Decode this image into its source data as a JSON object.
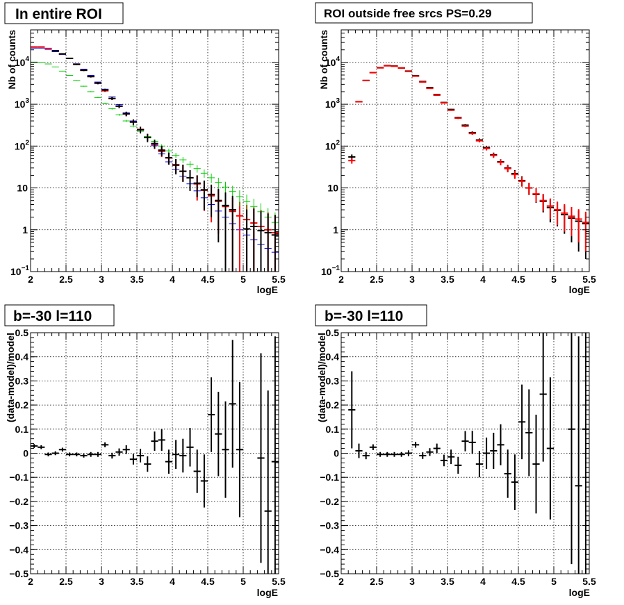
{
  "chart_data": [
    {
      "type": "scatter",
      "panel": "top-left",
      "title": "In entire ROI",
      "xlabel": "logE",
      "ylabel": "Nb of counts",
      "xlim": [
        2,
        5.5
      ],
      "ylim": [
        0.1,
        60000
      ],
      "yscale": "log",
      "grid": true,
      "x_ticks": [
        "2",
        "2.5",
        "3",
        "3.5",
        "4",
        "4.5",
        "5",
        "5.5"
      ],
      "y_ticks": [
        {
          "value": 0.1,
          "base": "10",
          "exp": "−1"
        },
        {
          "value": 1,
          "base": "1",
          "exp": ""
        },
        {
          "value": 10,
          "base": "10",
          "exp": ""
        },
        {
          "value": 100,
          "base": "10",
          "exp": "2"
        },
        {
          "value": 1000,
          "base": "10",
          "exp": "3"
        },
        {
          "value": 10000,
          "base": "10",
          "exp": "4"
        }
      ],
      "series": [
        {
          "color": "#0000ff",
          "style": "hline",
          "x": [
            2.05,
            2.15,
            2.25,
            2.35,
            2.45,
            2.55,
            2.65,
            2.75,
            2.85,
            2.95,
            3.05,
            3.15,
            3.25,
            3.35,
            3.45,
            3.55,
            3.65,
            3.75,
            3.85,
            3.95,
            4.05,
            4.15,
            4.25,
            4.35,
            4.45,
            4.55,
            4.65,
            4.75,
            4.85,
            4.95,
            5.05,
            5.15,
            5.25,
            5.35,
            5.45
          ],
          "y": [
            22000,
            22000,
            20500,
            18000,
            15500,
            12300,
            9300,
            6900,
            4900,
            3400,
            2300,
            1500,
            980,
            630,
            400,
            250,
            160,
            102,
            65,
            42,
            28,
            19,
            12.5,
            8.5,
            5.8,
            4.0,
            2.8,
            2.0,
            1.4,
            1.0,
            0.75,
            0.58,
            0.45,
            0.36,
            0.29
          ]
        },
        {
          "color": "#ff0000",
          "style": "cross",
          "x": [
            2.05,
            2.15,
            2.25,
            2.35,
            2.45,
            2.55,
            2.65,
            2.75,
            2.85,
            2.95,
            3.05,
            3.15,
            3.25,
            3.35,
            3.45,
            3.55,
            3.65,
            3.75,
            3.85,
            3.95,
            4.05,
            4.15,
            4.25,
            4.35,
            4.45,
            4.55,
            4.65,
            4.75,
            4.85,
            4.95,
            5.05,
            5.15,
            5.25,
            5.35,
            5.45
          ],
          "y": [
            23500,
            23500,
            21500,
            19000,
            16000,
            12500,
            9000,
            6500,
            4600,
            3200,
            2100,
            1370,
            900,
            590,
            380,
            250,
            165,
            110,
            75,
            52,
            36,
            25,
            17.5,
            12.5,
            8.8,
            6.5,
            4.8,
            3.6,
            2.75,
            2.15,
            1.75,
            1.45,
            1.2,
            1.0,
            0.85
          ],
          "err": [
            500,
            500,
            450,
            420,
            400,
            350,
            300,
            250,
            200,
            160,
            130,
            100,
            80,
            65,
            50,
            40,
            32,
            25,
            20,
            16,
            13,
            11,
            9,
            7.5,
            6,
            5,
            4,
            3.5,
            3,
            2.5,
            2.2,
            2,
            1.8,
            1.6,
            1.4
          ]
        },
        {
          "color": "#00cc00",
          "style": "cross",
          "x": [
            2.05,
            2.15,
            2.25,
            2.35,
            2.45,
            2.55,
            2.65,
            2.75,
            2.85,
            2.95,
            3.05,
            3.15,
            3.25,
            3.35,
            3.45,
            3.55,
            3.65,
            3.75,
            3.85,
            3.95,
            4.05,
            4.15,
            4.25,
            4.35,
            4.45,
            4.55,
            4.65,
            4.75,
            4.85,
            4.95,
            5.05,
            5.15,
            5.25,
            5.35,
            5.45
          ],
          "y": [
            10200,
            10000,
            9200,
            7800,
            6200,
            4900,
            3700,
            2700,
            2000,
            1450,
            1050,
            780,
            560,
            400,
            300,
            225,
            170,
            130,
            100,
            77,
            60,
            47,
            37,
            29,
            22.5,
            17.5,
            13.5,
            10.5,
            8.2,
            6.2,
            4.7,
            3.6,
            2.7,
            2.0,
            1.5
          ],
          "err": [
            150,
            150,
            130,
            120,
            100,
            90,
            75,
            65,
            55,
            45,
            40,
            33,
            28,
            24,
            20,
            17,
            15,
            13,
            11,
            9.5,
            8.5,
            7.5,
            6.5,
            5.8,
            5,
            4.5,
            4,
            3.5,
            3,
            2.6,
            2.2,
            1.9,
            1.6,
            1.3,
            1.1
          ]
        },
        {
          "color": "#000000",
          "style": "cross",
          "x": [
            2.35,
            2.45,
            2.55,
            2.65,
            2.75,
            2.85,
            2.95,
            3.05,
            3.15,
            3.25,
            3.35,
            3.45,
            3.55,
            3.65,
            3.75,
            3.85,
            3.95,
            4.05,
            4.15,
            4.25,
            4.35,
            4.45,
            4.55,
            4.65,
            4.75,
            4.85,
            5.05,
            5.15,
            5.25,
            5.35,
            5.45
          ],
          "y": [
            19000,
            16000,
            12500,
            9000,
            6500,
            4600,
            3200,
            2200,
            1380,
            900,
            590,
            375,
            245,
            160,
            115,
            80,
            53,
            35,
            25,
            17.5,
            13,
            9.0,
            7.0,
            5.0,
            3.8,
            3.0,
            1.05,
            1.2,
            0.95,
            0.85,
            0.75
          ],
          "err": [
            500,
            450,
            400,
            350,
            300,
            250,
            200,
            150,
            120,
            95,
            75,
            60,
            45,
            36,
            28,
            22,
            17,
            14,
            11,
            9,
            7,
            6,
            5,
            4.5,
            4,
            3.5,
            2,
            2,
            1.8,
            1.6,
            1.5
          ]
        }
      ]
    },
    {
      "type": "scatter",
      "panel": "top-right",
      "title": "ROI outside free srcs PS=0.29",
      "xlabel": "logE",
      "ylabel": "Nb of counts",
      "xlim": [
        2,
        5.5
      ],
      "ylim": [
        0.1,
        60000
      ],
      "yscale": "log",
      "grid": true,
      "x_ticks": [
        "2",
        "2.5",
        "3",
        "3.5",
        "4",
        "4.5",
        "5",
        "5.5"
      ],
      "y_ticks": [
        {
          "value": 0.1,
          "base": "10",
          "exp": "−1"
        },
        {
          "value": 1,
          "base": "1",
          "exp": ""
        },
        {
          "value": 10,
          "base": "10",
          "exp": ""
        },
        {
          "value": 100,
          "base": "10",
          "exp": "2"
        },
        {
          "value": 1000,
          "base": "10",
          "exp": "3"
        },
        {
          "value": 10000,
          "base": "10",
          "exp": "4"
        }
      ],
      "series": [
        {
          "color": "#000000",
          "style": "cross",
          "x": [
            2.15,
            2.25,
            2.35,
            2.45,
            2.55,
            2.65,
            2.75,
            2.85,
            2.95,
            3.05,
            3.15,
            3.25,
            3.35,
            3.45,
            3.55,
            3.65,
            3.75,
            3.85,
            3.95,
            4.05,
            4.15,
            4.25,
            4.35,
            4.45,
            4.55,
            4.65,
            4.75,
            4.85,
            4.95,
            5.05,
            5.15,
            5.25,
            5.35,
            5.45
          ],
          "y": [
            55,
            1150,
            3700,
            5700,
            7500,
            8400,
            8200,
            7400,
            6200,
            4800,
            3500,
            2500,
            1700,
            1100,
            750,
            480,
            315,
            210,
            140,
            92,
            62,
            42,
            30,
            22,
            15,
            10,
            7,
            4.8,
            3.4,
            2.9,
            2.3,
            1.9,
            1.6,
            1.4
          ],
          "err": [
            8,
            30,
            60,
            75,
            85,
            90,
            90,
            85,
            80,
            70,
            60,
            50,
            40,
            33,
            27,
            22,
            18,
            14,
            12,
            9.5,
            7.8,
            6.4,
            5.4,
            4.6,
            3.9,
            3.2,
            2.6,
            2.2,
            1.9,
            1.7,
            1.5,
            1.4,
            1.3,
            1.2
          ]
        },
        {
          "color": "#ff0000",
          "style": "cross",
          "x": [
            2.15,
            2.25,
            2.35,
            2.45,
            2.55,
            2.65,
            2.75,
            2.85,
            2.95,
            3.05,
            3.15,
            3.25,
            3.35,
            3.45,
            3.55,
            3.65,
            3.75,
            3.85,
            3.95,
            4.05,
            4.15,
            4.25,
            4.35,
            4.45,
            4.55,
            4.65,
            4.75,
            4.85,
            4.95,
            5.05,
            5.15,
            5.25,
            5.35,
            5.45
          ],
          "y": [
            45,
            1150,
            3700,
            5700,
            7400,
            8300,
            8100,
            7300,
            6100,
            4700,
            3400,
            2400,
            1650,
            1080,
            720,
            465,
            300,
            200,
            134,
            88,
            60,
            41,
            29,
            21,
            14.5,
            10,
            7.2,
            5.0,
            3.7,
            3.0,
            2.5,
            2.1,
            1.8,
            1.5
          ],
          "err": [
            7,
            30,
            60,
            75,
            85,
            90,
            90,
            85,
            78,
            68,
            58,
            49,
            40,
            32,
            26,
            21,
            17,
            14,
            11.5,
            9.3,
            7.7,
            6.4,
            5.4,
            4.6,
            3.8,
            3.2,
            2.7,
            2.2,
            1.9,
            1.7,
            1.6,
            1.4,
            1.3,
            1.2
          ]
        }
      ]
    },
    {
      "type": "scatter",
      "panel": "bottom-left",
      "title": "b=-30 l=110",
      "xlabel": "logE",
      "ylabel": "(data-model)/model",
      "xlim": [
        2,
        5.5
      ],
      "ylim": [
        -0.5,
        0.5
      ],
      "yscale": "linear",
      "grid": true,
      "x_ticks": [
        "2",
        "2.5",
        "3",
        "3.5",
        "4",
        "4.5",
        "5",
        "5.5"
      ],
      "y_ticks": [
        "−0.5",
        "−0.4",
        "−0.3",
        "−0.2",
        "−0.1",
        "0",
        "0.1",
        "0.2",
        "0.3",
        "0.4",
        "0.5"
      ],
      "series": [
        {
          "color": "#000000",
          "style": "cross",
          "x": [
            2.05,
            2.15,
            2.25,
            2.35,
            2.45,
            2.55,
            2.65,
            2.75,
            2.85,
            2.95,
            3.05,
            3.15,
            3.25,
            3.35,
            3.45,
            3.55,
            3.65,
            3.75,
            3.85,
            3.95,
            4.05,
            4.15,
            4.25,
            4.35,
            4.45,
            4.55,
            4.65,
            4.75,
            4.85,
            4.95,
            5.25,
            5.35,
            5.45
          ],
          "y": [
            0.03,
            0.025,
            -0.005,
            0.0,
            0.015,
            -0.005,
            -0.005,
            -0.01,
            -0.005,
            -0.005,
            0.035,
            -0.01,
            0.005,
            0.015,
            -0.025,
            -0.01,
            -0.045,
            0.05,
            0.055,
            -0.035,
            -0.005,
            -0.01,
            0.025,
            -0.075,
            -0.115,
            0.16,
            0.08,
            0.015,
            0.205,
            0.015,
            -0.02,
            -0.24,
            -0.035
          ],
          "err": [
            0.008,
            0.008,
            0.008,
            0.008,
            0.008,
            0.008,
            0.008,
            0.008,
            0.01,
            0.01,
            0.01,
            0.012,
            0.015,
            0.018,
            0.022,
            0.028,
            0.032,
            0.04,
            0.045,
            0.05,
            0.06,
            0.07,
            0.08,
            0.09,
            0.11,
            0.155,
            0.175,
            0.2,
            0.265,
            0.28,
            0.435,
            0.5,
            0.52
          ]
        }
      ]
    },
    {
      "type": "scatter",
      "panel": "bottom-right",
      "title": "b=-30 l=110",
      "xlabel": "logE",
      "ylabel": "(data-model)/model",
      "xlim": [
        2,
        5.5
      ],
      "ylim": [
        -0.5,
        0.5
      ],
      "yscale": "linear",
      "grid": true,
      "x_ticks": [
        "2",
        "2.5",
        "3",
        "3.5",
        "4",
        "4.5",
        "5",
        "5.5"
      ],
      "y_ticks": [
        "−0.5",
        "−0.4",
        "−0.3",
        "−0.2",
        "−0.1",
        "0",
        "0.1",
        "0.2",
        "0.3",
        "0.4",
        "0.5"
      ],
      "series": [
        {
          "color": "#000000",
          "style": "cross",
          "x": [
            2.15,
            2.25,
            2.35,
            2.45,
            2.55,
            2.65,
            2.75,
            2.85,
            2.95,
            3.05,
            3.15,
            3.25,
            3.35,
            3.45,
            3.55,
            3.65,
            3.75,
            3.85,
            3.95,
            4.05,
            4.15,
            4.25,
            4.35,
            4.45,
            4.55,
            4.65,
            4.75,
            4.85,
            4.95,
            5.25,
            5.35,
            5.45
          ],
          "y": [
            0.18,
            0.01,
            -0.01,
            0.025,
            -0.005,
            -0.005,
            -0.005,
            -0.005,
            0.0,
            0.035,
            -0.01,
            0.005,
            0.02,
            -0.03,
            -0.015,
            -0.05,
            0.05,
            0.045,
            -0.045,
            0.0,
            0.01,
            0.035,
            -0.085,
            -0.12,
            0.13,
            0.085,
            -0.045,
            0.245,
            0.02,
            0.1,
            -0.135,
            0.1
          ],
          "err": [
            0.16,
            0.03,
            0.015,
            0.012,
            0.01,
            0.01,
            0.01,
            0.01,
            0.012,
            0.012,
            0.014,
            0.016,
            0.02,
            0.024,
            0.03,
            0.035,
            0.042,
            0.048,
            0.055,
            0.065,
            0.075,
            0.085,
            0.1,
            0.115,
            0.155,
            0.18,
            0.205,
            0.28,
            0.295,
            0.56,
            0.62,
            0.64
          ]
        }
      ]
    }
  ]
}
